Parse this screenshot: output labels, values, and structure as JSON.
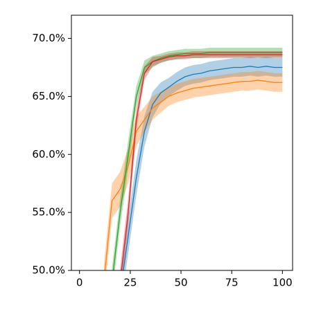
{
  "chart_data": {
    "type": "line",
    "x": [
      0,
      4,
      8,
      12,
      16,
      20,
      24,
      28,
      32,
      36,
      40,
      44,
      48,
      52,
      56,
      60,
      64,
      68,
      72,
      76,
      80,
      84,
      88,
      92,
      96,
      100
    ],
    "series": [
      {
        "color": "#1f77b4",
        "values": [
          null,
          null,
          null,
          null,
          null,
          48,
          53,
          58,
          62,
          64.3,
          65.3,
          65.8,
          66.3,
          66.7,
          66.9,
          67,
          67.2,
          67.3,
          67.4,
          67.5,
          67.5,
          67.6,
          67.5,
          67.6,
          67.5,
          67.5
        ],
        "errors": [
          null,
          null,
          null,
          null,
          null,
          1.5,
          1.5,
          1.5,
          1.3,
          1.1,
          0.9,
          0.8,
          0.8,
          0.8,
          0.8,
          0.8,
          0.8,
          0.8,
          0.8,
          0.8,
          0.8,
          0.8,
          0.8,
          0.8,
          0.8,
          0.8
        ]
      },
      {
        "color": "#ff7f0e",
        "values": [
          null,
          null,
          null,
          49,
          56,
          57,
          59,
          62,
          63,
          64,
          64.5,
          65,
          65.3,
          65.5,
          65.7,
          65.8,
          65.9,
          66,
          66.1,
          66.2,
          66.3,
          66.3,
          66.4,
          66.3,
          66.2,
          66.2
        ],
        "errors": [
          null,
          null,
          null,
          1.5,
          1.5,
          1.5,
          1.5,
          1.3,
          1.1,
          1,
          0.9,
          0.8,
          0.8,
          0.8,
          0.8,
          0.8,
          0.8,
          0.8,
          0.8,
          0.8,
          0.8,
          0.8,
          0.8,
          0.8,
          0.8,
          0.8
        ]
      },
      {
        "color": "#2ca02c",
        "values": [
          null,
          null,
          null,
          null,
          49,
          55,
          60,
          65,
          67.5,
          68,
          68.3,
          68.5,
          68.6,
          68.7,
          68.7,
          68.7,
          68.8,
          68.8,
          68.8,
          68.8,
          68.8,
          68.8,
          68.8,
          68.8,
          68.8,
          68.8
        ],
        "errors": [
          null,
          null,
          null,
          null,
          1.2,
          1.2,
          1.2,
          0.9,
          0.6,
          0.5,
          0.4,
          0.4,
          0.4,
          0.4,
          0.4,
          0.4,
          0.4,
          0.4,
          0.4,
          0.4,
          0.4,
          0.4,
          0.4,
          0.4,
          0.4,
          0.4
        ]
      },
      {
        "color": "#d62728",
        "values": [
          null,
          null,
          null,
          null,
          null,
          49,
          55,
          63,
          67,
          68,
          68.2,
          68.4,
          68.5,
          68.5,
          68.6,
          68.6,
          68.6,
          68.6,
          68.6,
          68.6,
          68.6,
          68.6,
          68.6,
          68.6,
          68.6,
          68.6
        ],
        "errors": [
          null,
          null,
          null,
          null,
          null,
          1.2,
          1.2,
          0.9,
          0.6,
          0.4,
          0.3,
          0.3,
          0.3,
          0.3,
          0.3,
          0.3,
          0.3,
          0.3,
          0.3,
          0.3,
          0.3,
          0.3,
          0.3,
          0.3,
          0.3,
          0.3
        ]
      }
    ],
    "xlim": [
      -4,
      105
    ],
    "xticks": [
      0,
      25,
      50,
      75,
      100
    ],
    "ylim": [
      50,
      72
    ],
    "yticks": [
      {
        "value": 50,
        "label": "50.0%"
      },
      {
        "value": 55,
        "label": "55.0%"
      },
      {
        "value": 60,
        "label": "60.0%"
      },
      {
        "value": 65,
        "label": "65.0%"
      },
      {
        "value": 70,
        "label": "70.0%"
      }
    ]
  }
}
